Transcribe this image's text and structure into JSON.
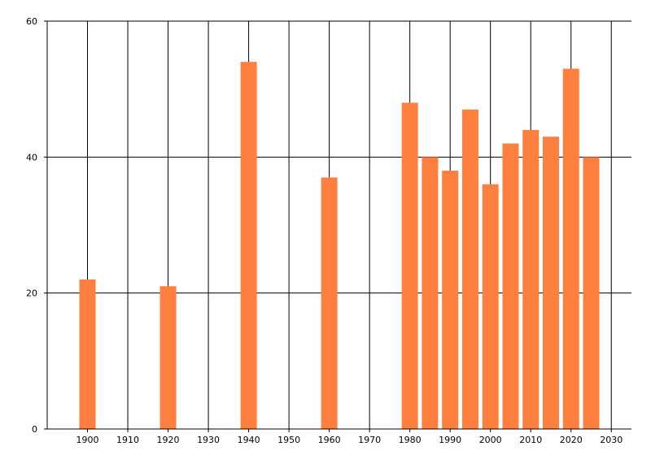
{
  "chart_data": {
    "type": "bar",
    "x": [
      1900,
      1920,
      1940,
      1960,
      1980,
      1985,
      1990,
      1995,
      2000,
      2005,
      2010,
      2015,
      2020,
      2025
    ],
    "values": [
      22,
      21,
      54,
      37,
      48,
      40,
      38,
      47,
      36,
      42,
      44,
      43,
      53,
      40
    ],
    "xticks": [
      "1900",
      "1910",
      "1920",
      "1930",
      "1940",
      "1950",
      "1960",
      "1970",
      "1980",
      "1990",
      "2000",
      "2010",
      "2020",
      "2030"
    ],
    "yticks": [
      "0",
      "20",
      "40",
      "60"
    ],
    "xlim": [
      1890,
      2035
    ],
    "ylim": [
      0,
      60
    ],
    "grid": true,
    "bar_color": "#ff7f3f",
    "title": "",
    "xlabel": "",
    "ylabel": ""
  }
}
